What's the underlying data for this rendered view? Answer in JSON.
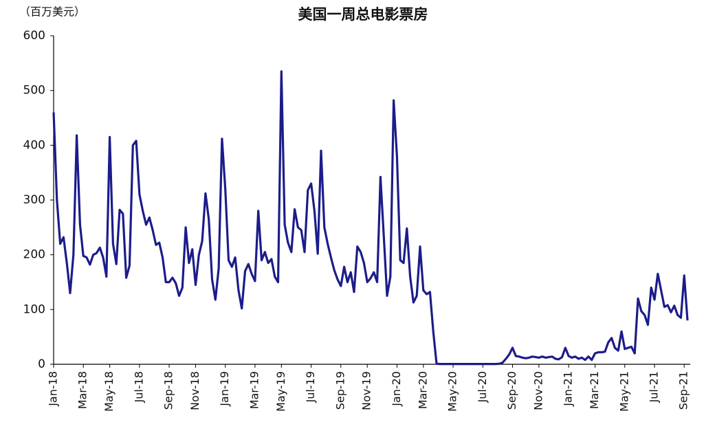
{
  "chart_data": {
    "type": "line",
    "title": "美国一周总电影票房",
    "y_label": "（百万美元）",
    "categories": [
      "Jan-18",
      null,
      null,
      null,
      null,
      null,
      null,
      null,
      null,
      "Mar-18",
      null,
      null,
      null,
      null,
      null,
      null,
      null,
      "May-18",
      null,
      null,
      null,
      null,
      null,
      null,
      null,
      null,
      "Jul-18",
      null,
      null,
      null,
      null,
      null,
      null,
      null,
      null,
      "Sep-18",
      null,
      null,
      null,
      null,
      null,
      null,
      null,
      "Nov-18",
      null,
      null,
      null,
      null,
      null,
      null,
      null,
      null,
      "Jan-19",
      null,
      null,
      null,
      null,
      null,
      null,
      null,
      null,
      "Mar-19",
      null,
      null,
      null,
      null,
      null,
      null,
      null,
      "May-19",
      null,
      null,
      null,
      null,
      null,
      null,
      null,
      null,
      "Jul-19",
      null,
      null,
      null,
      null,
      null,
      null,
      null,
      null,
      "Sep-19",
      null,
      null,
      null,
      null,
      null,
      null,
      null,
      "Nov-19",
      null,
      null,
      null,
      null,
      null,
      null,
      null,
      null,
      "Jan-20",
      null,
      null,
      null,
      null,
      null,
      null,
      null,
      "Mar-20",
      null,
      null,
      null,
      null,
      null,
      null,
      null,
      null,
      "May-20",
      null,
      null,
      null,
      null,
      null,
      null,
      null,
      null,
      "Jul-20",
      null,
      null,
      null,
      null,
      null,
      null,
      null,
      null,
      "Sep-20",
      null,
      null,
      null,
      null,
      null,
      null,
      null,
      "Nov-20",
      null,
      null,
      null,
      null,
      null,
      null,
      null,
      null,
      "Jan-21",
      null,
      null,
      null,
      null,
      null,
      null,
      null,
      "Mar-21",
      null,
      null,
      null,
      null,
      null,
      null,
      null,
      null,
      "May-21",
      null,
      null,
      null,
      null,
      null,
      null,
      null,
      null,
      "Jul-21",
      null,
      null,
      null,
      null,
      null,
      null,
      null,
      null,
      "Sep-21",
      null
    ],
    "values": [
      460,
      300,
      220,
      232,
      185,
      130,
      200,
      418,
      255,
      198,
      195,
      182,
      200,
      203,
      213,
      195,
      160,
      415,
      220,
      183,
      282,
      275,
      158,
      180,
      400,
      408,
      310,
      280,
      255,
      268,
      245,
      218,
      222,
      195,
      150,
      150,
      158,
      148,
      125,
      140,
      250,
      185,
      210,
      145,
      200,
      225,
      312,
      265,
      155,
      118,
      175,
      412,
      320,
      190,
      178,
      195,
      135,
      102,
      170,
      183,
      165,
      152,
      280,
      190,
      205,
      185,
      192,
      160,
      150,
      535,
      255,
      222,
      205,
      283,
      250,
      245,
      205,
      318,
      330,
      280,
      202,
      390,
      250,
      220,
      195,
      172,
      155,
      143,
      178,
      150,
      168,
      132,
      215,
      205,
      185,
      150,
      157,
      168,
      150,
      342,
      235,
      125,
      160,
      482,
      380,
      190,
      185,
      248,
      160,
      113,
      125,
      215,
      135,
      128,
      132,
      60,
      1,
      0.5,
      0.5,
      0.5,
      0.5,
      0.5,
      0.5,
      0.5,
      0.5,
      0.5,
      0.5,
      0.5,
      0.5,
      0.5,
      0.5,
      0.5,
      0.5,
      0.5,
      0.5,
      1,
      3,
      10,
      18,
      30,
      15,
      14,
      12,
      11,
      12,
      14,
      13,
      12,
      14,
      12,
      13,
      14,
      10,
      9,
      13,
      30,
      15,
      12,
      14,
      10,
      12,
      8,
      14,
      8,
      20,
      22,
      22,
      23,
      40,
      48,
      30,
      25,
      60,
      28,
      30,
      32,
      20,
      120,
      97,
      90,
      72,
      140,
      118,
      165,
      135,
      105,
      108,
      95,
      107,
      90,
      85,
      162,
      80
    ],
    "color": "#1c1c8a",
    "ylim": [
      0,
      600
    ],
    "yticks": [
      0,
      100,
      200,
      300,
      400,
      500,
      600
    ],
    "grid": false
  }
}
